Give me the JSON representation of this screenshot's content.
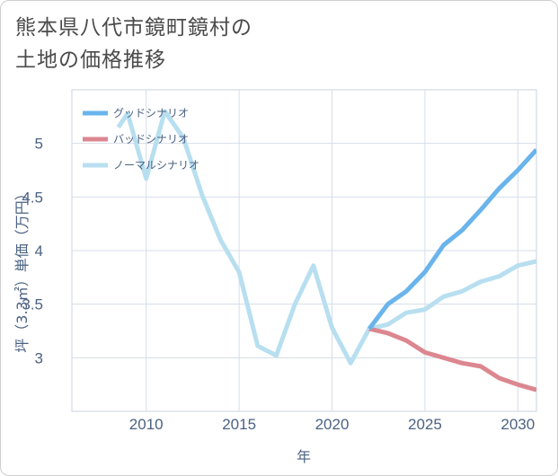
{
  "title_line1": "熊本県八代市鏡町鏡村の",
  "title_line2": "土地の価格推移",
  "chart_data": {
    "type": "line",
    "xlabel": "年",
    "ylabel": "坪（3.3㎡）単価（万円）",
    "xlim": [
      2006,
      2031
    ],
    "ylim": [
      2.5,
      5.5
    ],
    "xticks": [
      2010,
      2015,
      2020,
      2025,
      2030
    ],
    "yticks": [
      3,
      3.5,
      4,
      4.5,
      5
    ],
    "xtick_labels": [
      "2010",
      "2015",
      "2020",
      "2025",
      "2030"
    ],
    "ytick_labels": [
      "3",
      "3.5",
      "4",
      "4.5",
      "5"
    ],
    "legend_position": "top-left",
    "series": [
      {
        "name": "グッドシナリオ",
        "color": "#6ab4ec",
        "x": [
          2022,
          2023,
          2024,
          2025,
          2026,
          2027,
          2028,
          2029,
          2030,
          2031
        ],
        "y": [
          3.27,
          3.5,
          3.62,
          3.8,
          4.05,
          4.19,
          4.38,
          4.58,
          4.75,
          4.94
        ]
      },
      {
        "name": "バッドシナリオ",
        "color": "#dc8790",
        "x": [
          2022,
          2023,
          2024,
          2025,
          2026,
          2027,
          2028,
          2029,
          2030,
          2031
        ],
        "y": [
          3.27,
          3.23,
          3.16,
          3.05,
          3.0,
          2.95,
          2.92,
          2.81,
          2.75,
          2.7
        ]
      },
      {
        "name": "ノーマルシナリオ",
        "color": "#b8dff0",
        "x": [
          2008.5,
          2009,
          2010,
          2011,
          2012,
          2013,
          2014,
          2015,
          2016,
          2017,
          2018,
          2019,
          2020,
          2021,
          2022,
          2023,
          2024,
          2025,
          2026,
          2027,
          2028,
          2029,
          2030,
          2031
        ],
        "y": [
          5.15,
          5.28,
          4.67,
          5.3,
          5.05,
          4.52,
          4.1,
          3.8,
          3.11,
          3.02,
          3.5,
          3.86,
          3.28,
          2.95,
          3.27,
          3.31,
          3.42,
          3.45,
          3.57,
          3.62,
          3.71,
          3.76,
          3.86,
          3.9
        ]
      }
    ]
  }
}
